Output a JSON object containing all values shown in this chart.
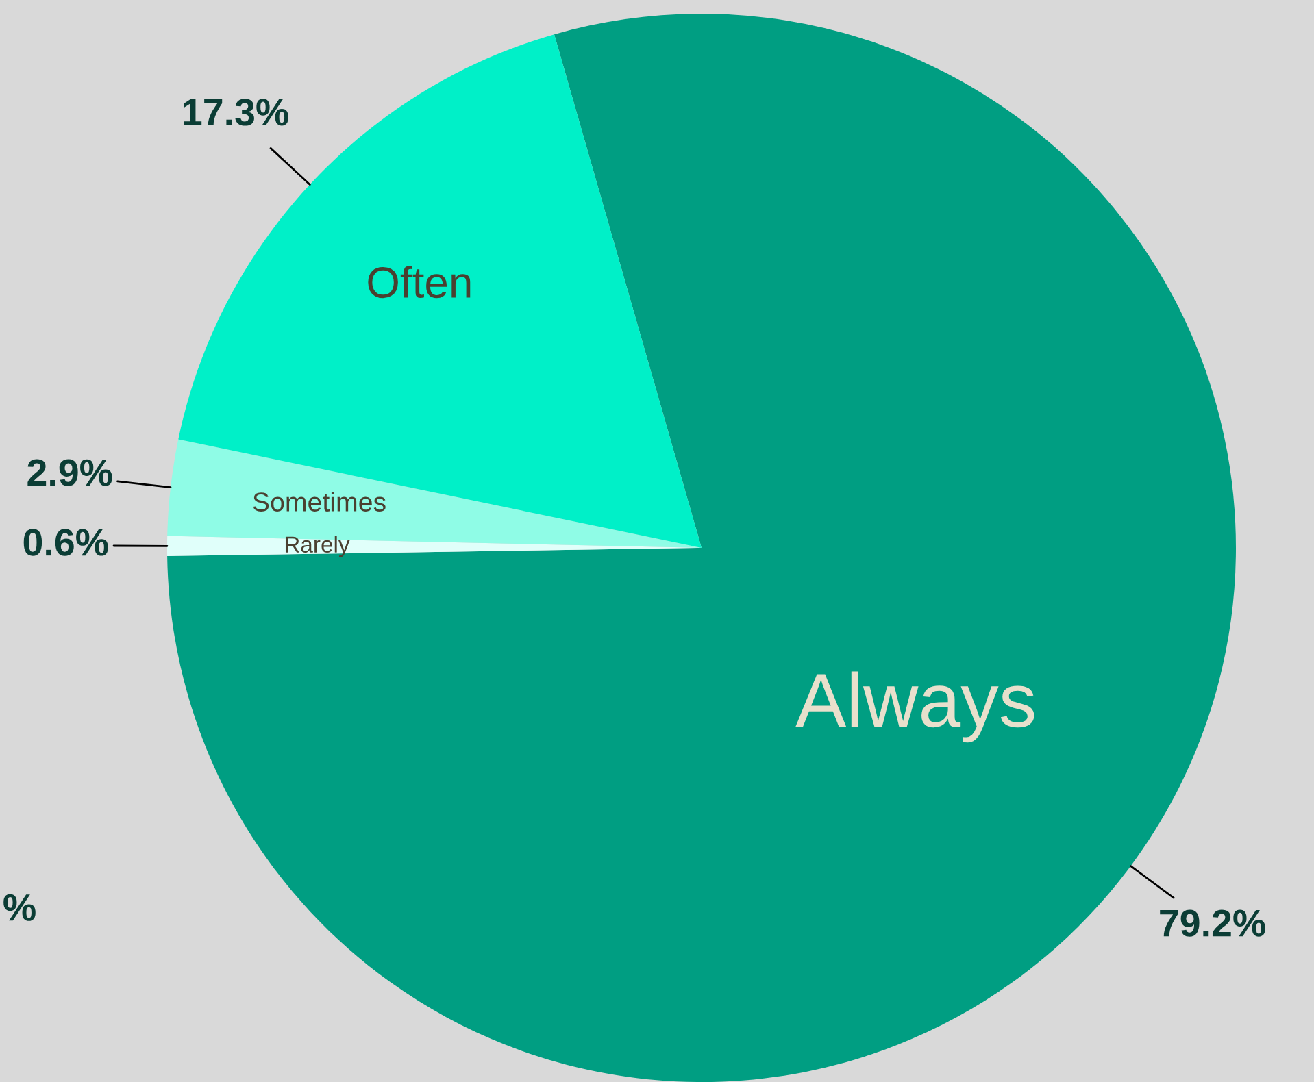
{
  "chart_data": {
    "type": "pie",
    "categories": [
      "Always",
      "Rarely",
      "Sometimes",
      "Often"
    ],
    "values": [
      79.2,
      0.6,
      2.9,
      17.3
    ],
    "value_labels": [
      "79.2%",
      "0.6%",
      "2.9%",
      "17.3%"
    ],
    "colors": [
      "#009e82",
      "#e0fffa",
      "#8ffce6",
      "#00f0c8"
    ],
    "annotations": [
      "%"
    ]
  }
}
